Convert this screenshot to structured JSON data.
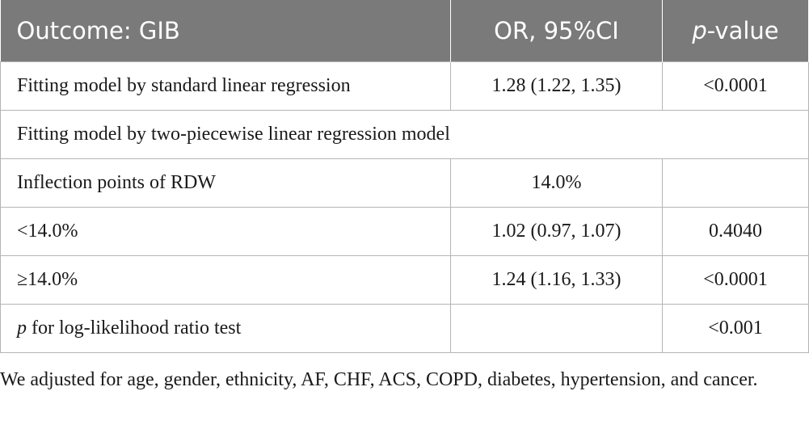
{
  "table": {
    "headers": {
      "outcome": "Outcome: GIB",
      "or_ci": "OR, 95%CI",
      "p_italic": "p",
      "p_rest": "-value"
    },
    "rows": [
      {
        "label": "Fitting model by standard linear regression",
        "or": "1.28 (1.22, 1.35)",
        "p": "<0.0001"
      },
      {
        "label": "Fitting model by two-piecewise linear regression model"
      },
      {
        "label": "Inflection points of RDW",
        "or": "14.0%",
        "p": ""
      },
      {
        "label": "<14.0%",
        "or": "1.02 (0.97, 1.07)",
        "p": "0.4040"
      },
      {
        "label": "≥14.0%",
        "or": "1.24 (1.16, 1.33)",
        "p": "<0.0001"
      },
      {
        "label_italic": "p",
        "label_rest": " for log-likelihood ratio test",
        "or": "",
        "p": "<0.001"
      }
    ]
  },
  "footnote": "We adjusted for age, gender, ethnicity, AF, CHF, ACS, COPD, diabetes, hypertension, and cancer."
}
